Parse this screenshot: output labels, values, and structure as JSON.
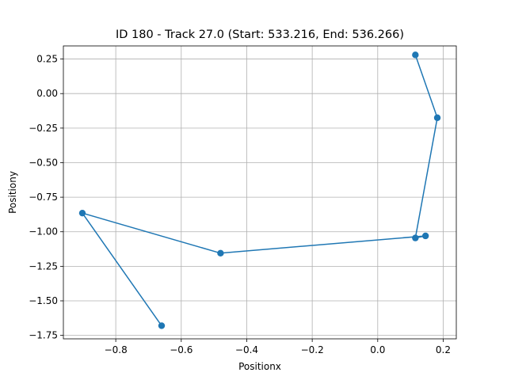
{
  "chart_data": {
    "type": "line",
    "title": "ID 180 - Track 27.0 (Start: 533.216, End: 536.266)",
    "xlabel": "Positionx",
    "ylabel": "Positiony",
    "xlim": [
      -0.96,
      0.24
    ],
    "ylim": [
      -1.775,
      0.345
    ],
    "xticks": [
      -0.8,
      -0.6,
      -0.4,
      -0.2,
      0.0,
      0.2
    ],
    "xtick_labels": [
      "−0.8",
      "−0.6",
      "−0.4",
      "−0.2",
      "0.0",
      "0.2"
    ],
    "yticks": [
      0.25,
      0.0,
      -0.25,
      -0.5,
      -0.75,
      -1.0,
      -1.25,
      -1.5,
      -1.75
    ],
    "ytick_labels": [
      "0.25",
      "0.00",
      "−0.25",
      "−0.50",
      "−0.75",
      "−1.00",
      "−1.25",
      "−1.50",
      "−1.75"
    ],
    "grid": true,
    "series": [
      {
        "color": "#1f77b4",
        "marker": "circle",
        "x": [
          0.115,
          0.182,
          0.115,
          0.146,
          -0.48,
          -0.902,
          -0.66
        ],
        "y": [
          0.28,
          -0.175,
          -1.045,
          -1.03,
          -1.155,
          -0.865,
          -1.68
        ]
      }
    ]
  }
}
